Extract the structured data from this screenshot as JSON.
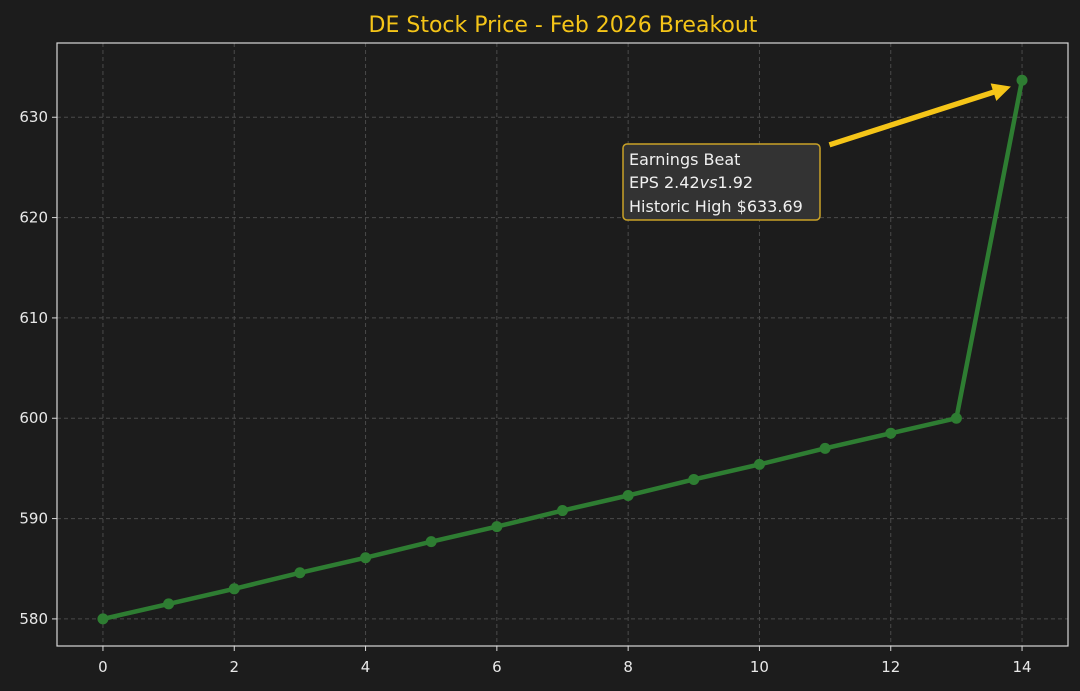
{
  "chart_data": {
    "type": "line",
    "title": "DE Stock Price - Feb 2026 Breakout",
    "xlabel": "",
    "ylabel": "",
    "xlim": [
      -0.7,
      14.7
    ],
    "ylim": [
      577.3,
      637.4
    ],
    "xticks": [
      "0",
      "2",
      "4",
      "6",
      "8",
      "10",
      "12",
      "14"
    ],
    "yticks": [
      "580",
      "590",
      "600",
      "610",
      "620",
      "630"
    ],
    "grid": true,
    "series": [
      {
        "x": [
          0,
          1,
          2,
          3,
          4,
          5,
          6,
          7,
          8,
          9,
          10,
          11,
          12,
          13,
          14
        ],
        "values": [
          580.0,
          581.5,
          583.0,
          584.6,
          586.1,
          587.7,
          589.2,
          590.8,
          592.3,
          593.9,
          595.4,
          597.0,
          598.5,
          600.0,
          633.69
        ]
      }
    ],
    "annotation": {
      "lines": [
        "Earnings Beat",
        "EPS 2.42",
        "vs",
        "1.92",
        "Historic High $633.69"
      ],
      "target": [
        14,
        633.69
      ]
    },
    "colors": {
      "background": "#1c1c1c",
      "line": "#2e7d32",
      "title": "#f5c518",
      "arrow": "#f5c518",
      "annotation_border": "#c9a227",
      "annotation_fill": "#333333",
      "grid": "#4a4a4a",
      "axes": "#d8d8d8"
    }
  }
}
